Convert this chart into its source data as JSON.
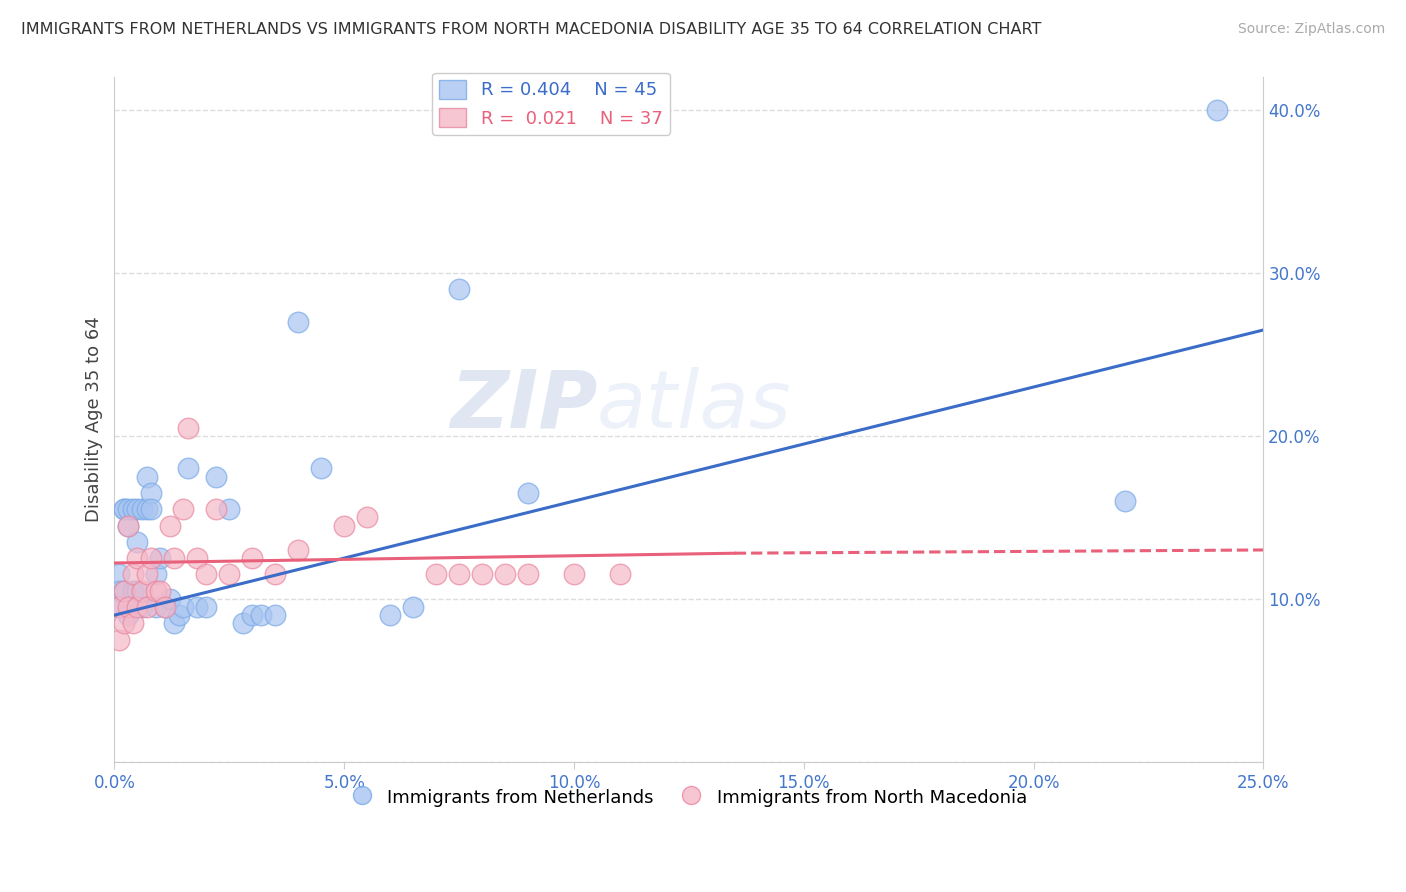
{
  "title": "IMMIGRANTS FROM NETHERLANDS VS IMMIGRANTS FROM NORTH MACEDONIA DISABILITY AGE 35 TO 64 CORRELATION CHART",
  "source": "Source: ZipAtlas.com",
  "ylabel": "Disability Age 35 to 64",
  "xlim": [
    0.0,
    0.25
  ],
  "ylim": [
    0.0,
    0.42
  ],
  "xticks": [
    0.0,
    0.05,
    0.1,
    0.15,
    0.2,
    0.25
  ],
  "yticks": [
    0.0,
    0.1,
    0.2,
    0.3,
    0.4
  ],
  "xticklabels": [
    "0.0%",
    "5.0%",
    "10.0%",
    "15.0%",
    "20.0%",
    "25.0%"
  ],
  "yticklabels_right": [
    "",
    "10.0%",
    "20.0%",
    "30.0%",
    "40.0%"
  ],
  "legend_r_blue": "0.404",
  "legend_n_blue": "45",
  "legend_r_pink": "0.021",
  "legend_n_pink": "37",
  "blue_color": "#a8c4f0",
  "blue_edge": "#7aaae8",
  "pink_color": "#f5b8c8",
  "pink_edge": "#e888a0",
  "line_blue": "#3a6cc8",
  "line_pink": "#e8607a",
  "watermark_text": "ZIPatlas",
  "netherlands_x": [
    0.001,
    0.001,
    0.001,
    0.002,
    0.002,
    0.002,
    0.003,
    0.003,
    0.003,
    0.004,
    0.004,
    0.005,
    0.005,
    0.005,
    0.006,
    0.006,
    0.007,
    0.007,
    0.008,
    0.008,
    0.009,
    0.009,
    0.01,
    0.011,
    0.012,
    0.013,
    0.014,
    0.015,
    0.016,
    0.018,
    0.02,
    0.022,
    0.025,
    0.028,
    0.03,
    0.032,
    0.035,
    0.04,
    0.045,
    0.06,
    0.065,
    0.075,
    0.09,
    0.22,
    0.24
  ],
  "netherlands_y": [
    0.115,
    0.105,
    0.095,
    0.155,
    0.155,
    0.105,
    0.155,
    0.145,
    0.09,
    0.155,
    0.105,
    0.155,
    0.135,
    0.105,
    0.155,
    0.095,
    0.175,
    0.155,
    0.165,
    0.155,
    0.115,
    0.095,
    0.125,
    0.095,
    0.1,
    0.085,
    0.09,
    0.095,
    0.18,
    0.095,
    0.095,
    0.175,
    0.155,
    0.085,
    0.09,
    0.09,
    0.09,
    0.27,
    0.18,
    0.09,
    0.095,
    0.29,
    0.165,
    0.16,
    0.4
  ],
  "north_mac_x": [
    0.001,
    0.001,
    0.002,
    0.002,
    0.003,
    0.003,
    0.004,
    0.004,
    0.005,
    0.005,
    0.006,
    0.007,
    0.007,
    0.008,
    0.009,
    0.01,
    0.011,
    0.012,
    0.013,
    0.015,
    0.016,
    0.018,
    0.02,
    0.022,
    0.025,
    0.03,
    0.035,
    0.04,
    0.05,
    0.055,
    0.07,
    0.075,
    0.08,
    0.085,
    0.09,
    0.1,
    0.11
  ],
  "north_mac_y": [
    0.095,
    0.075,
    0.105,
    0.085,
    0.145,
    0.095,
    0.115,
    0.085,
    0.125,
    0.095,
    0.105,
    0.115,
    0.095,
    0.125,
    0.105,
    0.105,
    0.095,
    0.145,
    0.125,
    0.155,
    0.205,
    0.125,
    0.115,
    0.155,
    0.115,
    0.125,
    0.115,
    0.13,
    0.145,
    0.15,
    0.115,
    0.115,
    0.115,
    0.115,
    0.115,
    0.115,
    0.115
  ],
  "blue_line_x0": 0.0,
  "blue_line_y0": 0.09,
  "blue_line_x1": 0.25,
  "blue_line_y1": 0.265,
  "pink_line_x0": 0.0,
  "pink_line_y0": 0.122,
  "pink_line_x1": 0.135,
  "pink_line_y1": 0.128,
  "pink_line_dash_x0": 0.135,
  "pink_line_dash_x1": 0.25,
  "pink_line_dash_y0": 0.128,
  "pink_line_dash_y1": 0.13
}
